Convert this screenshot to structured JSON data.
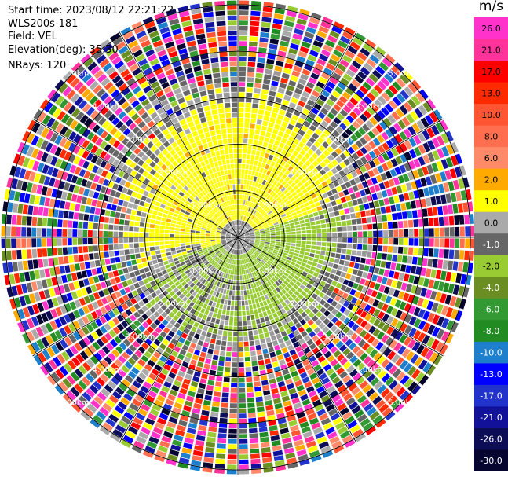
{
  "info": {
    "start_time": "Start time: 2023/08/12 22:21:22",
    "site": "WLS200s-181",
    "field": "Field: VEL",
    "elevation": "Elevation(deg): 35.30",
    "nrays": "NRays: 120"
  },
  "chart_data": {
    "type": "heatmap",
    "subtype": "polar-ppi",
    "center_value": 0,
    "ring_labels": [
      "1.00km",
      "2.00km",
      "3.00km",
      "4.00km",
      "5.00km"
    ],
    "ring_km": [
      1,
      2,
      3,
      4,
      5
    ],
    "max_range_km": 5.1,
    "radial_lines_deg": [
      0,
      30,
      60,
      90,
      120,
      150,
      180,
      210,
      240,
      270,
      300,
      330
    ],
    "colorbar": {
      "unit": "m/s",
      "tick_labels": [
        "26.0",
        "21.0",
        "17.0",
        "13.0",
        "10.0",
        "8.0",
        "6.0",
        "2.0",
        "1.0",
        "0.0",
        "-1.0",
        "-2.0",
        "-4.0",
        "-6.0",
        "-8.0",
        "-10.0",
        "-13.0",
        "-17.0",
        "-21.0",
        "-26.0",
        "-30.0"
      ],
      "colors": [
        "#ff33cc",
        "#ff3399",
        "#ff0000",
        "#ff2a00",
        "#ff5533",
        "#ff6f4f",
        "#ff8a6a",
        "#ffaa00",
        "#ffff00",
        "#aaaaaa",
        "#666666",
        "#99cc33",
        "#6b8e23",
        "#339933",
        "#228b22",
        "#1e80cc",
        "#0000ff",
        "#2233cc",
        "#111199",
        "#0d0d55",
        "#05052f"
      ]
    }
  }
}
